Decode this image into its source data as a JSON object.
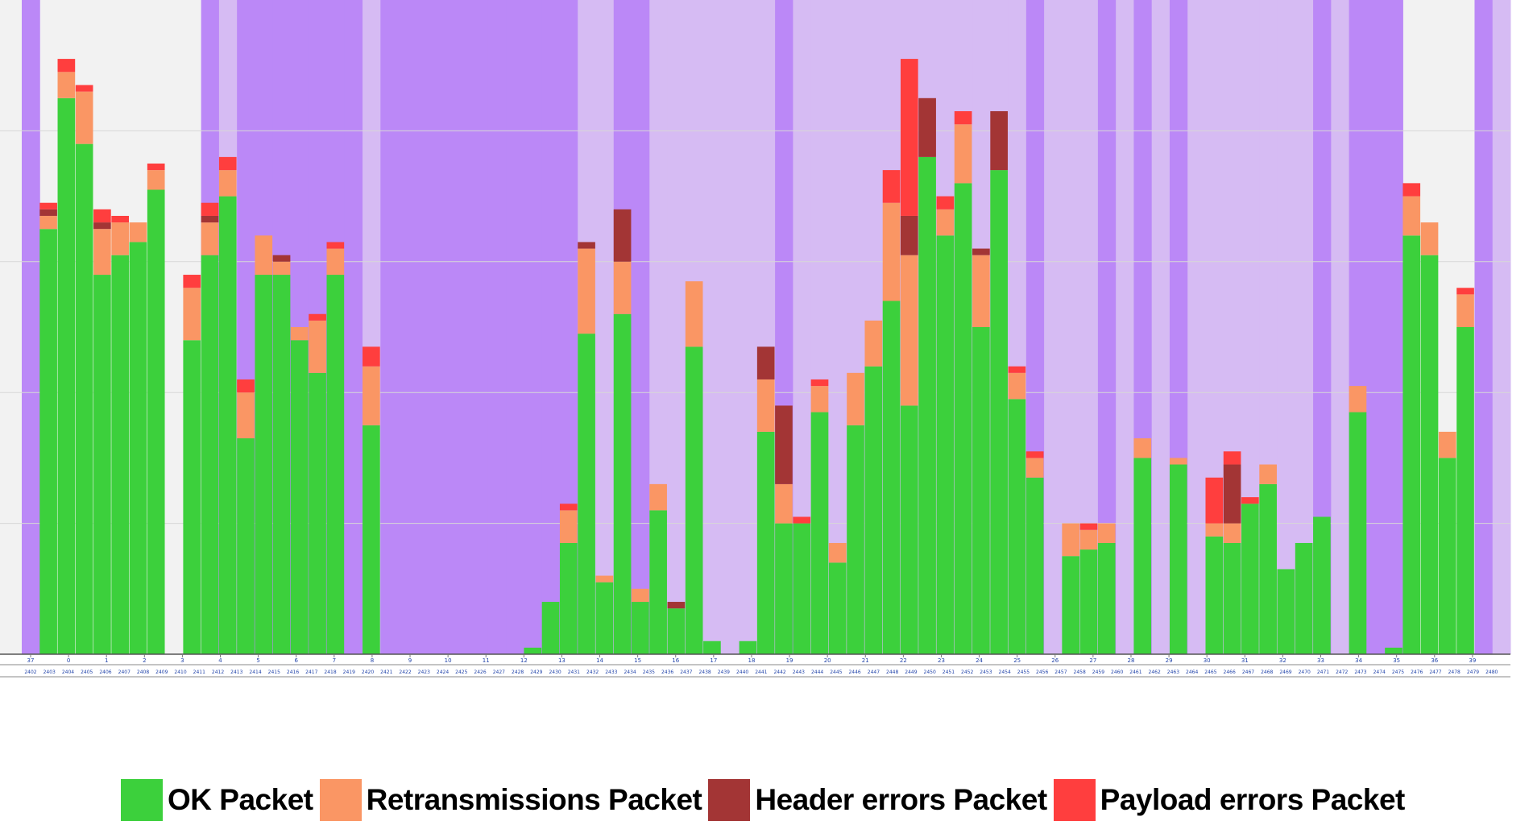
{
  "chart_data": {
    "type": "bar",
    "stacked": true,
    "title": "",
    "xlabel": "",
    "ylabel": "",
    "ylim": [
      0,
      100
    ],
    "grid": true,
    "legend_position": "bottom",
    "colors": {
      "plot_background": "#f2f2f2",
      "band_dark": "#bb88f7",
      "band_light": "#d6bbf3",
      "grid": "#d7d7d7"
    },
    "bands": [
      "dark",
      "light",
      "light",
      "light",
      "light",
      "light",
      "light",
      "light",
      "light",
      "light",
      "dark",
      "light",
      "dark",
      "dark",
      "dark",
      "dark",
      "dark",
      "dark",
      "dark",
      "light",
      "dark",
      "dark",
      "dark",
      "dark",
      "dark",
      "dark",
      "dark",
      "dark",
      "dark",
      "dark",
      "dark",
      "light",
      "light",
      "dark",
      "dark",
      "light",
      "light",
      "light",
      "light",
      "light",
      "light",
      "light",
      "dark",
      "light",
      "light",
      "light",
      "light",
      "light",
      "light",
      "light",
      "light",
      "light",
      "light",
      "light",
      "light",
      "light",
      "dark",
      "light",
      "light",
      "light",
      "dark",
      "light",
      "dark",
      "light",
      "dark",
      "light",
      "light",
      "light",
      "light",
      "light",
      "light",
      "light",
      "dark",
      "light",
      "dark",
      "dark",
      "dark",
      "light",
      "light",
      "light",
      "light",
      "dark",
      "light"
    ],
    "series": [
      {
        "name": "OK Packet",
        "color": "#3cd03c",
        "values": [
          0,
          65,
          85,
          78,
          58,
          61,
          63,
          71,
          0,
          48,
          61,
          70,
          33,
          58,
          58,
          48,
          43,
          58,
          0,
          35,
          0,
          0,
          0,
          0,
          0,
          0,
          0,
          0,
          1,
          8,
          17,
          49,
          11,
          52,
          8,
          22,
          7,
          47,
          2,
          0,
          2,
          34,
          20,
          20,
          37,
          14,
          35,
          44,
          54,
          38,
          76,
          64,
          72,
          50,
          74,
          39,
          27,
          0,
          15,
          16,
          17,
          0,
          30,
          0,
          29,
          0,
          18,
          17,
          23,
          26,
          13,
          17,
          21,
          0,
          37,
          0,
          1,
          64,
          61,
          30,
          50,
          0,
          0
        ]
      },
      {
        "name": "Retransmissions Packet",
        "color": "#fa9664",
        "values": [
          0,
          2,
          4,
          8,
          7,
          5,
          3,
          3,
          0,
          8,
          5,
          4,
          7,
          6,
          2,
          2,
          8,
          4,
          0,
          9,
          0,
          0,
          0,
          0,
          0,
          0,
          0,
          0,
          0,
          0,
          5,
          13,
          1,
          8,
          2,
          4,
          0,
          10,
          0,
          0,
          0,
          8,
          6,
          0,
          4,
          3,
          8,
          7,
          15,
          23,
          0,
          4,
          9,
          11,
          0,
          4,
          3,
          0,
          5,
          3,
          3,
          0,
          3,
          0,
          1,
          0,
          2,
          3,
          0,
          3,
          0,
          0,
          0,
          0,
          4,
          0,
          0,
          6,
          5,
          4,
          5,
          0,
          0
        ]
      },
      {
        "name": "Header errors Packet",
        "color": "#a33535",
        "values": [
          0,
          1,
          0,
          0,
          1,
          0,
          0,
          0,
          0,
          0,
          1,
          0,
          0,
          0,
          1,
          0,
          0,
          0,
          0,
          0,
          0,
          0,
          0,
          0,
          0,
          0,
          0,
          0,
          0,
          0,
          0,
          1,
          0,
          8,
          0,
          0,
          1,
          0,
          0,
          0,
          0,
          5,
          12,
          0,
          0,
          0,
          0,
          0,
          0,
          6,
          9,
          0,
          0,
          1,
          9,
          0,
          0,
          0,
          0,
          0,
          0,
          0,
          0,
          0,
          0,
          0,
          0,
          9,
          0,
          0,
          0,
          0,
          0,
          0,
          0,
          0,
          0,
          0,
          0,
          0,
          0,
          0,
          0
        ]
      },
      {
        "name": "Payload errors Packet",
        "color": "#ff3e3e",
        "values": [
          0,
          1,
          2,
          1,
          2,
          1,
          0,
          1,
          0,
          2,
          2,
          2,
          2,
          0,
          0,
          0,
          1,
          1,
          0,
          3,
          0,
          0,
          0,
          0,
          0,
          0,
          0,
          0,
          0,
          0,
          1,
          0,
          0,
          0,
          0,
          0,
          0,
          0,
          0,
          0,
          0,
          0,
          0,
          1,
          1,
          0,
          0,
          0,
          5,
          24,
          0,
          2,
          2,
          0,
          0,
          1,
          1,
          0,
          0,
          1,
          0,
          0,
          0,
          0,
          0,
          0,
          7,
          2,
          1,
          0,
          0,
          0,
          0,
          0,
          0,
          0,
          0,
          2,
          0,
          0,
          1,
          0,
          0
        ]
      }
    ],
    "x_ticks_top": [
      "37",
      "0",
      "1",
      "2",
      "3",
      "4",
      "5",
      "6",
      "7",
      "8",
      "9",
      "10",
      "11",
      "12",
      "13",
      "14",
      "15",
      "16",
      "17",
      "18",
      "19",
      "20",
      "21",
      "22",
      "23",
      "24",
      "25",
      "26",
      "27",
      "28",
      "29",
      "30",
      "31",
      "32",
      "33",
      "34",
      "35",
      "36",
      "39"
    ],
    "x_ticks_bottom": [
      "2402",
      "2403",
      "2404",
      "2405",
      "2406",
      "2407",
      "2408",
      "2409",
      "2410",
      "2411",
      "2412",
      "2413",
      "2414",
      "2415",
      "2416",
      "2417",
      "2418",
      "2419",
      "2420",
      "2421",
      "2422",
      "2423",
      "2424",
      "2425",
      "2426",
      "2427",
      "2428",
      "2429",
      "2430",
      "2431",
      "2432",
      "2433",
      "2434",
      "2435",
      "2436",
      "2437",
      "2438",
      "2439",
      "2440",
      "2441",
      "2442",
      "2443",
      "2444",
      "2445",
      "2446",
      "2447",
      "2448",
      "2449",
      "2450",
      "2451",
      "2452",
      "2453",
      "2454",
      "2455",
      "2456",
      "2457",
      "2458",
      "2459",
      "2460",
      "2461",
      "2462",
      "2463",
      "2464",
      "2465",
      "2466",
      "2467",
      "2468",
      "2469",
      "2470",
      "2471",
      "2472",
      "2473",
      "2474",
      "2475",
      "2476",
      "2477",
      "2478",
      "2479",
      "2480"
    ]
  },
  "legend": [
    {
      "label": "OK Packet",
      "color": "#3cd03c"
    },
    {
      "label": "Retransmissions Packet",
      "color": "#fa9664"
    },
    {
      "label": "Header errors Packet",
      "color": "#a33535"
    },
    {
      "label": "Payload errors Packet",
      "color": "#ff3e3e"
    }
  ]
}
